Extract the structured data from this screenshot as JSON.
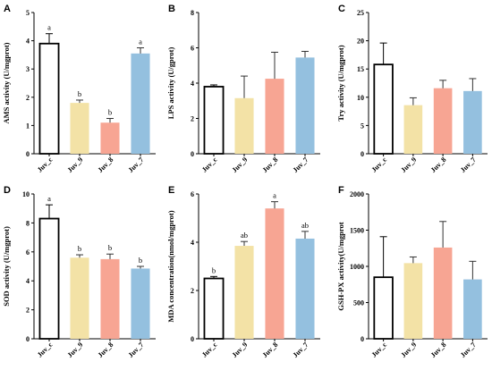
{
  "chart_data": [
    {
      "type": "bar",
      "panel": "A",
      "ylabel": "AMS activity (U/mgprot)",
      "categories": [
        "Juv_c",
        "Juv_9",
        "Juv_8",
        "Juv_7"
      ],
      "values": [
        3.9,
        1.8,
        1.1,
        3.55
      ],
      "errors": [
        0.35,
        0.1,
        0.15,
        0.2
      ],
      "sig": [
        "a",
        "b",
        "b",
        "a"
      ],
      "ylim": [
        0,
        5
      ],
      "ticks": [
        0,
        1,
        2,
        3,
        4,
        5
      ],
      "colors": [
        "#ffffff",
        "#f3e2a6",
        "#f7a593",
        "#94c0df"
      ]
    },
    {
      "type": "bar",
      "panel": "B",
      "ylabel": "LPS activity (U/gprot)",
      "categories": [
        "Juv_c",
        "Juv_9",
        "Juv_8",
        "Juv_7"
      ],
      "values": [
        3.8,
        3.15,
        4.25,
        5.45
      ],
      "errors": [
        0.1,
        1.25,
        1.5,
        0.35
      ],
      "sig": [
        "",
        "",
        "",
        ""
      ],
      "ylim": [
        0,
        8
      ],
      "ticks": [
        0,
        2,
        4,
        6,
        8
      ],
      "colors": [
        "#ffffff",
        "#f3e2a6",
        "#f7a593",
        "#94c0df"
      ]
    },
    {
      "type": "bar",
      "panel": "C",
      "ylabel": "Try activity (U/mgprot)",
      "categories": [
        "Juv_c",
        "Juv_9",
        "Juv_8",
        "Juv_7"
      ],
      "values": [
        15.8,
        8.6,
        11.6,
        11.1
      ],
      "errors": [
        3.8,
        1.3,
        1.4,
        2.2
      ],
      "sig": [
        "",
        "",
        "",
        ""
      ],
      "ylim": [
        0,
        25
      ],
      "ticks": [
        0,
        5,
        10,
        15,
        20,
        25
      ],
      "colors": [
        "#ffffff",
        "#f3e2a6",
        "#f7a593",
        "#94c0df"
      ]
    },
    {
      "type": "bar",
      "panel": "D",
      "ylabel": "SOD activity (U/mgprot)",
      "categories": [
        "Juv_c",
        "Juv_9",
        "Juv_8",
        "Juv_7"
      ],
      "values": [
        8.3,
        5.6,
        5.5,
        4.85
      ],
      "errors": [
        0.95,
        0.2,
        0.35,
        0.15
      ],
      "sig": [
        "a",
        "b",
        "b",
        "b"
      ],
      "ylim": [
        0,
        10
      ],
      "ticks": [
        0,
        2,
        4,
        6,
        8,
        10
      ],
      "colors": [
        "#ffffff",
        "#f3e2a6",
        "#f7a593",
        "#94c0df"
      ]
    },
    {
      "type": "bar",
      "panel": "E",
      "ylabel": "MDA concentration(nmol/mgprot)",
      "categories": [
        "Juv_c",
        "Juv_9",
        "Juv_8",
        "Juv_7"
      ],
      "values": [
        2.5,
        3.85,
        5.4,
        4.15
      ],
      "errors": [
        0.08,
        0.18,
        0.28,
        0.3
      ],
      "sig": [
        "b",
        "ab",
        "a",
        "ab"
      ],
      "ylim": [
        0,
        6
      ],
      "ticks": [
        0,
        2,
        4,
        6
      ],
      "colors": [
        "#ffffff",
        "#f3e2a6",
        "#f7a593",
        "#94c0df"
      ]
    },
    {
      "type": "bar",
      "panel": "F",
      "ylabel": "GSH-PX activity(U/mgprot",
      "categories": [
        "Juv_c",
        "Juv_9",
        "Juv_8",
        "Juv_7"
      ],
      "values": [
        850,
        1045,
        1260,
        820
      ],
      "errors": [
        560,
        85,
        360,
        250
      ],
      "sig": [
        "",
        "",
        "",
        ""
      ],
      "ylim": [
        0,
        2000
      ],
      "ticks": [
        0,
        500,
        1000,
        1500,
        2000
      ],
      "colors": [
        "#ffffff",
        "#f3e2a6",
        "#f7a593",
        "#94c0df"
      ]
    }
  ]
}
